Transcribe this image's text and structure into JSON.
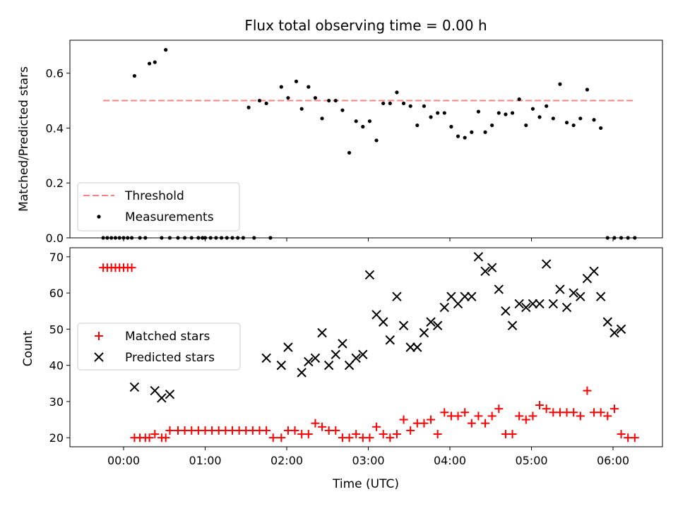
{
  "chart_data": [
    {
      "type": "scatter",
      "title": "Flux total observing time = 0.00 h",
      "ylabel": "Matched/Predicted stars",
      "ylim": [
        0,
        0.72
      ],
      "y_ticks": [
        "0.0",
        "0.2",
        "0.4",
        "0.6"
      ],
      "threshold": {
        "name": "Threshold",
        "value": 0.5,
        "x_range": [
          "23:45",
          "06:15"
        ]
      },
      "legend_position": "lower-left",
      "series": [
        {
          "name": "Measurements",
          "x": [
            "23:45",
            "23:48",
            "23:51",
            "23:54",
            "23:57",
            "00:00",
            "00:03",
            "00:06",
            "00:08",
            "00:12",
            "00:16",
            "00:19",
            "00:23",
            "00:28",
            "00:31",
            "00:34",
            "00:40",
            "00:45",
            "00:50",
            "00:55",
            "00:58",
            "01:00",
            "01:04",
            "01:08",
            "01:12",
            "01:16",
            "01:20",
            "01:24",
            "01:28",
            "01:32",
            "01:36",
            "01:40",
            "01:45",
            "01:48",
            "01:56",
            "02:01",
            "02:07",
            "02:11",
            "02:16",
            "02:21",
            "02:26",
            "02:31",
            "02:36",
            "02:41",
            "02:46",
            "02:51",
            "02:56",
            "03:01",
            "03:06",
            "03:11",
            "03:16",
            "03:21",
            "03:26",
            "03:31",
            "03:36",
            "03:41",
            "03:46",
            "03:51",
            "03:56",
            "04:01",
            "04:06",
            "04:11",
            "04:16",
            "04:21",
            "04:26",
            "04:31",
            "04:36",
            "04:41",
            "04:46",
            "04:51",
            "04:56",
            "05:01",
            "05:06",
            "05:11",
            "05:16",
            "05:21",
            "05:26",
            "05:31",
            "05:36",
            "05:41",
            "05:46",
            "05:51",
            "05:56",
            "06:01",
            "06:06",
            "06:11",
            "06:16"
          ],
          "y": [
            0.0,
            0.0,
            0.0,
            0.0,
            0.0,
            0.0,
            0.0,
            0.0,
            0.59,
            0.0,
            0.0,
            0.635,
            0.64,
            0.0,
            0.685,
            0.0,
            0.0,
            0.0,
            0.0,
            0.0,
            0.0,
            0.0,
            0.0,
            0.0,
            0.0,
            0.0,
            0.0,
            0.0,
            0.0,
            0.475,
            0.0,
            0.5,
            0.49,
            0.0,
            0.55,
            0.51,
            0.57,
            0.47,
            0.55,
            0.51,
            0.435,
            0.5,
            0.5,
            0.465,
            0.31,
            0.425,
            0.405,
            0.425,
            0.355,
            0.49,
            0.49,
            0.53,
            0.49,
            0.48,
            0.41,
            0.48,
            0.44,
            0.455,
            0.455,
            0.405,
            0.37,
            0.365,
            0.385,
            0.46,
            0.385,
            0.41,
            0.455,
            0.45,
            0.455,
            0.505,
            0.41,
            0.47,
            0.44,
            0.48,
            0.435,
            0.56,
            0.42,
            0.41,
            0.435,
            0.54,
            0.43,
            0.4,
            0.0,
            0.0,
            0.0,
            0.0,
            0.0
          ]
        }
      ]
    },
    {
      "type": "scatter",
      "xlabel": "Time (UTC)",
      "ylabel": "Count",
      "ylim": [
        17.5,
        72.5
      ],
      "y_ticks": [
        "20",
        "30",
        "40",
        "50",
        "60",
        "70"
      ],
      "x_ticks": [
        "00:00",
        "01:00",
        "02:00",
        "03:00",
        "04:00",
        "05:00",
        "06:00"
      ],
      "legend_position": "center-left",
      "series": [
        {
          "name": "Matched stars",
          "marker": "plus",
          "color": "#ff0000",
          "x": [
            "23:45",
            "23:48",
            "23:51",
            "23:54",
            "23:57",
            "00:00",
            "00:03",
            "00:06",
            "00:08",
            "00:12",
            "00:16",
            "00:19",
            "00:23",
            "00:28",
            "00:31",
            "00:34",
            "00:40",
            "00:45",
            "00:50",
            "00:55",
            "01:00",
            "01:05",
            "01:10",
            "01:15",
            "01:20",
            "01:25",
            "01:30",
            "01:35",
            "01:40",
            "01:45",
            "01:50",
            "01:56",
            "02:01",
            "02:06",
            "02:11",
            "02:16",
            "02:21",
            "02:26",
            "02:31",
            "02:36",
            "02:41",
            "02:46",
            "02:51",
            "02:56",
            "03:01",
            "03:06",
            "03:11",
            "03:16",
            "03:21",
            "03:26",
            "03:31",
            "03:36",
            "03:41",
            "03:46",
            "03:51",
            "03:56",
            "04:01",
            "04:06",
            "04:11",
            "04:16",
            "04:21",
            "04:26",
            "04:31",
            "04:36",
            "04:41",
            "04:46",
            "04:51",
            "04:56",
            "05:01",
            "05:06",
            "05:11",
            "05:16",
            "05:21",
            "05:26",
            "05:31",
            "05:36",
            "05:41",
            "05:46",
            "05:51",
            "05:56",
            "06:01",
            "06:06",
            "06:11",
            "06:16"
          ],
          "y": [
            67,
            67,
            67,
            67,
            67,
            67,
            67,
            67,
            20,
            20,
            20,
            20,
            21,
            20,
            20,
            22,
            22,
            22,
            22,
            22,
            22,
            22,
            22,
            22,
            22,
            22,
            22,
            22,
            22,
            22,
            20,
            20,
            22,
            22,
            21,
            21,
            24,
            23,
            22,
            22,
            20,
            20,
            21,
            20,
            20,
            23,
            21,
            20,
            21,
            25,
            22,
            24,
            24,
            25,
            21,
            27,
            26,
            26,
            27,
            24,
            26,
            24,
            26,
            28,
            21,
            21,
            26,
            25,
            26,
            29,
            28,
            27,
            27,
            27,
            27,
            26,
            33,
            27,
            27,
            26,
            28,
            21,
            20,
            20
          ]
        },
        {
          "name": "Predicted stars",
          "marker": "x",
          "color": "#000000",
          "x": [
            "00:08",
            "00:23",
            "00:28",
            "00:34",
            "01:45",
            "01:56",
            "02:01",
            "02:11",
            "02:16",
            "02:21",
            "02:26",
            "02:31",
            "02:36",
            "02:41",
            "02:46",
            "02:51",
            "02:56",
            "03:01",
            "03:06",
            "03:11",
            "03:16",
            "03:21",
            "03:26",
            "03:31",
            "03:36",
            "03:41",
            "03:46",
            "03:51",
            "03:56",
            "04:01",
            "04:06",
            "04:11",
            "04:16",
            "04:21",
            "04:26",
            "04:31",
            "04:36",
            "04:41",
            "04:46",
            "04:51",
            "04:56",
            "05:01",
            "05:06",
            "05:11",
            "05:16",
            "05:21",
            "05:26",
            "05:31",
            "05:36",
            "05:41",
            "05:46",
            "05:51",
            "05:56",
            "06:01",
            "06:06"
          ],
          "y": [
            34,
            33,
            31,
            32,
            42,
            40,
            45,
            38,
            41,
            42,
            49,
            40,
            43,
            46,
            40,
            42,
            43,
            65,
            54,
            52,
            47,
            59,
            51,
            45,
            45,
            49,
            52,
            51,
            56,
            59,
            57,
            59,
            59,
            70,
            66,
            67,
            61,
            55,
            51,
            57,
            56,
            57,
            57,
            68,
            57,
            61,
            56,
            60,
            59,
            64,
            66,
            59,
            52,
            49,
            50
          ]
        }
      ]
    }
  ]
}
